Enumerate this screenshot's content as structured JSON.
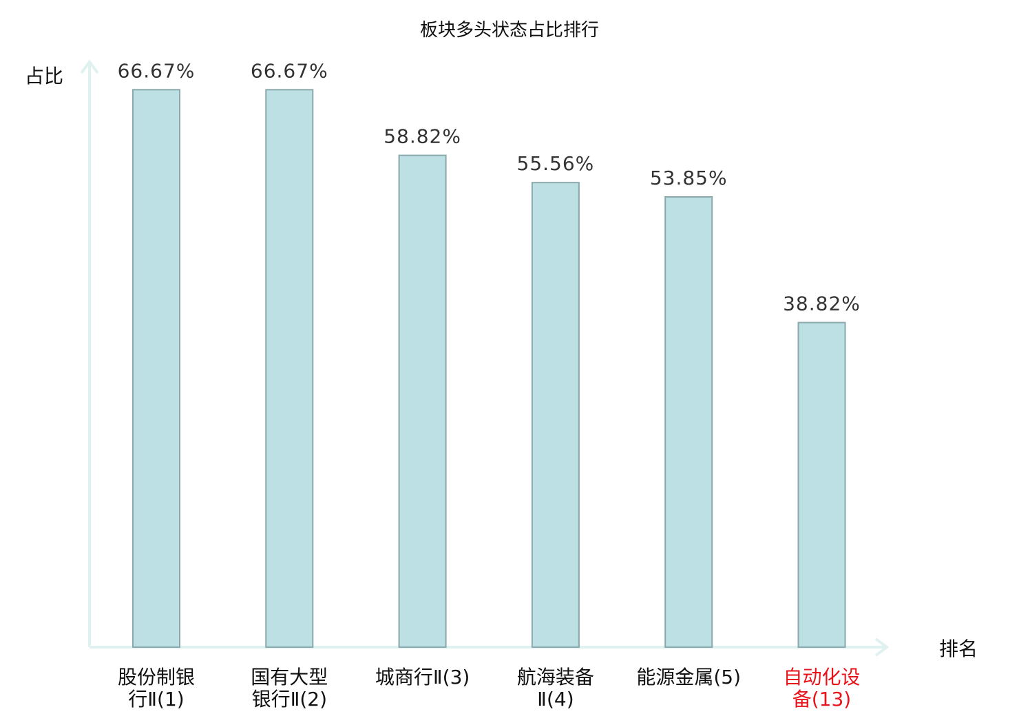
{
  "chart_data": {
    "type": "bar",
    "title": "板块多头状态占比排行",
    "ylabel": "占比",
    "xlabel": "排名",
    "categories": [
      [
        "股份制银",
        "行Ⅱ(1)"
      ],
      [
        "国有大型",
        "银行Ⅱ(2)"
      ],
      [
        "城商行Ⅱ(3)"
      ],
      [
        "航海装备",
        "Ⅱ(4)"
      ],
      [
        "能源金属(5)"
      ],
      [
        "自动化设",
        "备(13)"
      ]
    ],
    "values": [
      66.67,
      66.67,
      58.82,
      55.56,
      53.85,
      38.82
    ],
    "value_labels": [
      "66.67%",
      "66.67%",
      "58.82%",
      "55.56%",
      "53.85%",
      "38.82%"
    ],
    "highlight_index": 5,
    "ylim": [
      0,
      69
    ],
    "grid": false,
    "colors": {
      "bar_fill": "#bce0e3",
      "bar_stroke": "#8aa9ac",
      "axis": "#dff2ef",
      "label": "#111111",
      "highlight": "#e8141b"
    }
  }
}
